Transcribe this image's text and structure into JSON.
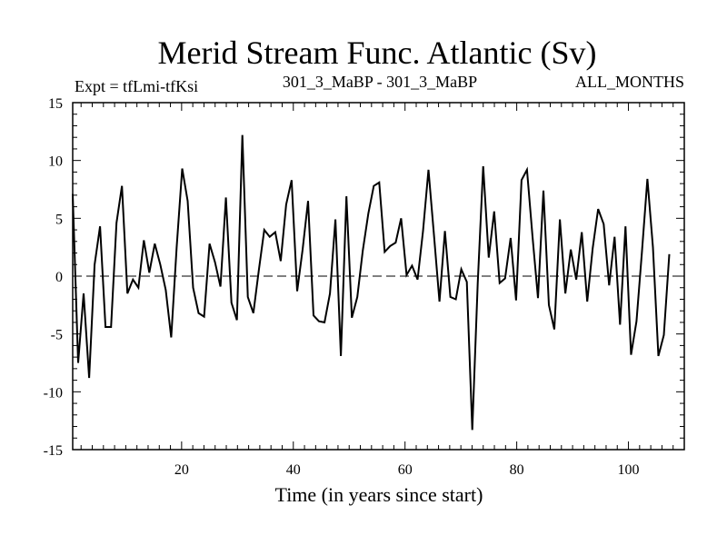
{
  "chart_data": {
    "type": "line",
    "title": "Merid Stream Func. Atlantic (Sv)",
    "subtitle_left": "Expt = tfLmi-tfKsi",
    "subtitle_center": "301_3_MaBP - 301_3_MaBP",
    "subtitle_right": "ALL_MONTHS",
    "xlabel": "Time (in years since start)",
    "ylabel": "",
    "xlim": [
      0.5,
      110
    ],
    "ylim": [
      -15,
      15
    ],
    "x_ticks": [
      20,
      40,
      60,
      80,
      100
    ],
    "y_ticks": [
      -15,
      -10,
      -5,
      0,
      5,
      10,
      15
    ],
    "x_tick_labels": [
      "20",
      "40",
      "60",
      "80",
      "100"
    ],
    "y_tick_labels": [
      "-15",
      "-10",
      "-5",
      "0",
      "5",
      "10",
      "15"
    ],
    "zero_line": "dashed",
    "series": [
      {
        "name": "Merid Stream Func. Atlantic",
        "x_start": 0.5,
        "x_step": 0.98,
        "values": [
          7.1,
          -7.5,
          -1.5,
          -8.8,
          1.0,
          4.3,
          -4.4,
          -4.4,
          4.6,
          7.8,
          -1.5,
          -0.3,
          -1.0,
          3.1,
          0.3,
          2.8,
          1.0,
          -1.2,
          -5.3,
          2.5,
          9.3,
          6.5,
          -1.0,
          -3.2,
          -3.5,
          2.8,
          1.2,
          -0.9,
          6.8,
          -2.3,
          -3.8,
          12.2,
          -1.8,
          -3.2,
          0.5,
          4.0,
          3.4,
          3.8,
          1.3,
          6.2,
          8.3,
          -1.3,
          2.3,
          6.5,
          -3.4,
          -3.9,
          -4.0,
          -1.5,
          4.9,
          -6.9,
          6.9,
          -3.6,
          -1.8,
          2.2,
          5.4,
          7.8,
          8.1,
          2.1,
          2.6,
          2.9,
          5.0,
          0.1,
          0.9,
          -0.3,
          3.9,
          9.2,
          3.6,
          -2.2,
          3.9,
          -1.8,
          -2.0,
          0.6,
          -0.5,
          -13.3,
          -0.6,
          9.5,
          1.6,
          5.6,
          -0.6,
          -0.2,
          3.3,
          -2.1,
          8.3,
          9.2,
          3.5,
          -1.9,
          7.4,
          -2.5,
          -4.6,
          4.9,
          -1.5,
          2.3,
          -0.3,
          3.8,
          -2.2,
          2.4,
          5.8,
          4.5,
          -0.8,
          3.4,
          -4.2,
          4.3,
          -6.8,
          -3.9,
          2.1,
          8.4,
          2.5,
          -6.9,
          -5.1,
          1.9
        ]
      }
    ]
  }
}
